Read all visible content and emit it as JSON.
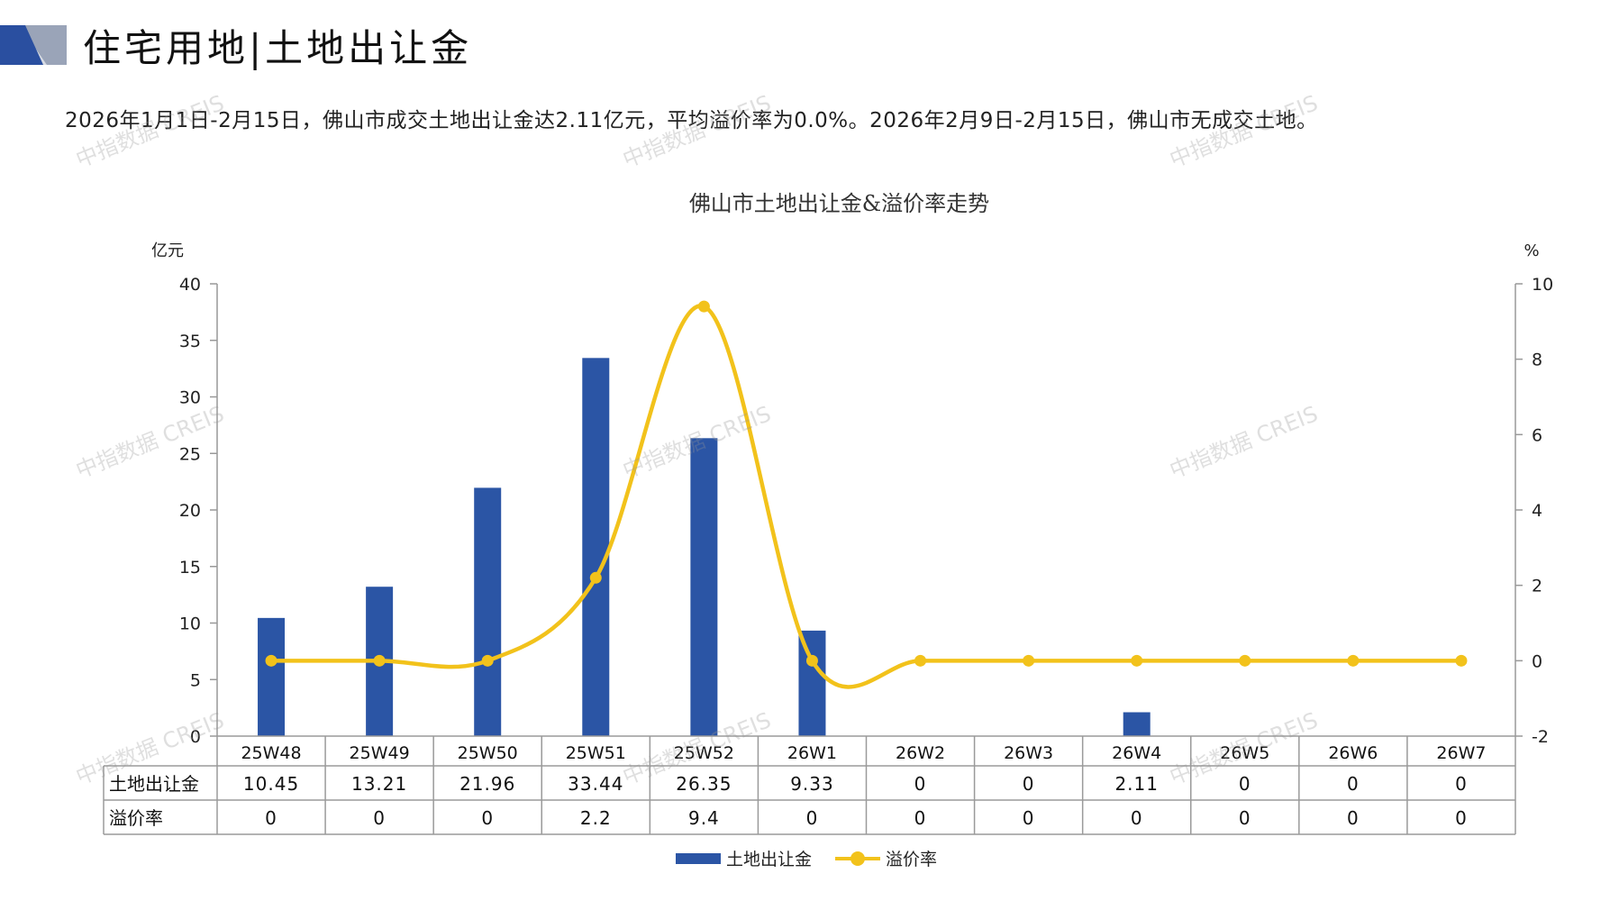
{
  "page": {
    "title": "住宅用地|土地出让金",
    "summary": "2026年1月1日-2月15日，佛山市成交土地出让金达2.11亿元，平均溢价率为0.0%。2026年2月9日-2月15日，佛山市无成交土地。",
    "watermark": "中指数据 CREIS",
    "logo_colors": {
      "primary": "#2a4fa0",
      "secondary": "#9aa4b8",
      "light": "#d7dbe3"
    }
  },
  "chart_data": {
    "type": "bar+line",
    "title": "佛山市土地出让金&溢价率走势",
    "left_axis": {
      "unit": "亿元",
      "ylim": [
        0,
        40
      ],
      "ticks": [
        "0",
        "5",
        "10",
        "15",
        "20",
        "25",
        "30",
        "35",
        "40"
      ]
    },
    "right_axis": {
      "unit": "%",
      "ylim": [
        -2,
        10
      ],
      "ticks": [
        "-2",
        "0",
        "2",
        "4",
        "6",
        "8",
        "10"
      ]
    },
    "categories": [
      "25W48",
      "25W49",
      "25W50",
      "25W51",
      "25W52",
      "26W1",
      "26W2",
      "26W3",
      "26W4",
      "26W5",
      "26W6",
      "26W7"
    ],
    "series": [
      {
        "name": "土地出让金",
        "kind": "bar",
        "axis": "left",
        "color": "#2b55a5",
        "values": [
          10.45,
          13.21,
          21.96,
          33.44,
          26.35,
          9.33,
          0,
          0,
          2.11,
          0,
          0,
          0
        ],
        "labels": [
          "10.45",
          "13.21",
          "21.96",
          "33.44",
          "26.35",
          "9.33",
          "0",
          "0",
          "2.11",
          "0",
          "0",
          "0"
        ]
      },
      {
        "name": "溢价率",
        "kind": "line",
        "axis": "right",
        "color": "#f2c21b",
        "values": [
          0,
          0,
          0,
          2.2,
          9.4,
          0,
          0,
          0,
          0,
          0,
          0,
          0
        ],
        "labels": [
          "0",
          "0",
          "0",
          "2.2",
          "9.4",
          "0",
          "0",
          "0",
          "0",
          "0",
          "0",
          "0"
        ]
      }
    ],
    "data_table": true,
    "legend_position": "bottom",
    "grid": false
  }
}
